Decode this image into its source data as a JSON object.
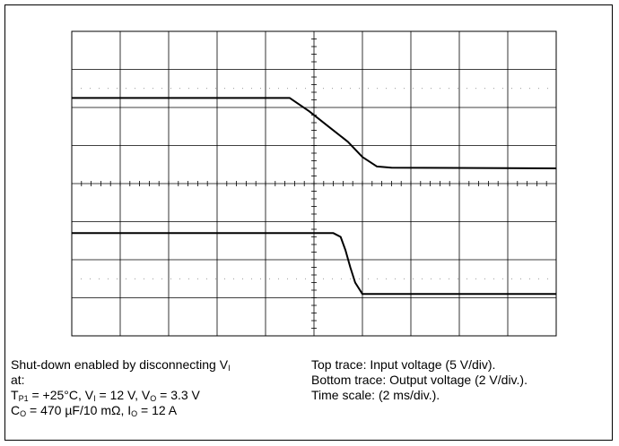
{
  "caption_left": {
    "line1_a": "Shut-down enabled by disconnecting V",
    "line1_sub": "I",
    "line2": "at:",
    "line3": {
      "t": "T",
      "t_sub": "P1",
      "t_val": " = +25°C, V",
      "vi_sub": "I",
      "vi_val": " = 12 V, V",
      "vo_sub": "O",
      "vo_val": " = 3.3 V"
    },
    "line4": {
      "c": "C",
      "c_sub": "O",
      "c_val": " = 470 µF/10 mΩ, I",
      "io_sub": "O",
      "io_val": " = 12 A"
    }
  },
  "caption_right": {
    "line1": "Top trace: Input voltage (5 V/div).",
    "line2": "Bottom trace: Output voltage (2 V/div.).",
    "line3": "Time scale: (2 ms/div.)."
  },
  "chart_data": {
    "type": "line",
    "grid": true,
    "x_divisions": 10,
    "y_divisions": 8,
    "x_unit_per_div": "2 ms",
    "trace_color": "#000000",
    "series": [
      {
        "x": [
          0,
          4.5,
          4.9,
          5.3,
          5.7,
          6.0,
          6.3,
          6.6,
          10
        ],
        "y": [
          6.25,
          6.25,
          5.9,
          5.5,
          5.1,
          4.7,
          4.45,
          4.42,
          4.4
        ]
      },
      {
        "x": [
          0,
          5.4,
          5.55,
          5.65,
          5.75,
          5.85,
          6.0,
          10
        ],
        "y": [
          2.7,
          2.7,
          2.6,
          2.25,
          1.8,
          1.4,
          1.1,
          1.1
        ]
      }
    ]
  }
}
